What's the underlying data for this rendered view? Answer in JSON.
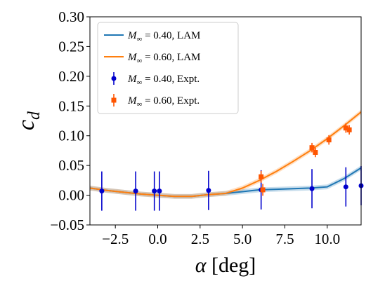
{
  "chart_data": {
    "type": "line",
    "xlabel": "α [deg]",
    "ylabel": "c_d",
    "xlim": [
      -4.0,
      12.0
    ],
    "ylim": [
      -0.05,
      0.3
    ],
    "x_ticks": [
      -2.5,
      0.0,
      2.5,
      5.0,
      7.5,
      10.0
    ],
    "x_tick_labels": [
      "−2.5",
      "0.0",
      "2.5",
      "5.0",
      "7.5",
      "10.0"
    ],
    "y_ticks": [
      -0.05,
      0.0,
      0.05,
      0.1,
      0.15,
      0.2,
      0.25,
      0.3
    ],
    "y_tick_labels": [
      "−0.05",
      "0.00",
      "0.05",
      "0.10",
      "0.15",
      "0.20",
      "0.25",
      "0.30"
    ],
    "grid": false,
    "legend_position": "top-left",
    "series": [
      {
        "name": "M∞ = 0.40, LAM",
        "legend_main": "M",
        "legend_sub": "∞",
        "legend_rest": " = 0.40, LAM",
        "kind": "line",
        "color": "#1f77b4",
        "x": [
          -4.0,
          -3.0,
          -2.0,
          -1.0,
          0.0,
          1.0,
          2.0,
          3.0,
          4.0,
          5.0,
          6.0,
          7.0,
          8.0,
          9.0,
          10.0,
          11.0,
          12.0
        ],
        "y": [
          0.012,
          0.008,
          0.005,
          0.002,
          0.0,
          -0.002,
          -0.002,
          0.001,
          0.003,
          0.006,
          0.009,
          0.01,
          0.011,
          0.012,
          0.014,
          0.028,
          0.046
        ]
      },
      {
        "name": "M∞ = 0.60, LAM",
        "legend_main": "M",
        "legend_sub": "∞",
        "legend_rest": " = 0.60, LAM",
        "kind": "line",
        "color": "#ff7f0e",
        "x": [
          -4.0,
          -3.0,
          -2.0,
          -1.0,
          0.0,
          1.0,
          2.0,
          3.0,
          4.0,
          5.0,
          6.0,
          7.0,
          8.0,
          9.0,
          10.0,
          11.0,
          12.0
        ],
        "y": [
          0.012,
          0.008,
          0.005,
          0.002,
          0.0,
          -0.002,
          -0.002,
          0.001,
          0.003,
          0.012,
          0.025,
          0.04,
          0.057,
          0.075,
          0.095,
          0.117,
          0.14
        ]
      },
      {
        "name": "M∞ = 0.40, Expt.",
        "legend_main": "M",
        "legend_sub": "∞",
        "legend_rest": " = 0.40, Expt.",
        "kind": "errorbar",
        "marker": "circle",
        "color": "#0000cc",
        "x": [
          -3.3,
          -1.3,
          -0.2,
          0.1,
          3.0,
          6.1,
          9.1,
          11.1,
          12.0
        ],
        "y": [
          0.007,
          0.007,
          0.007,
          0.007,
          0.008,
          0.009,
          0.011,
          0.014,
          0.016
        ],
        "yerr": [
          0.033,
          0.033,
          0.033,
          0.033,
          0.033,
          0.033,
          0.033,
          0.033,
          0.033
        ]
      },
      {
        "name": "M∞ = 0.60, Expt.",
        "legend_main": "M",
        "legend_sub": "∞",
        "legend_rest": " = 0.60, Expt.",
        "kind": "errorbar",
        "marker": "square",
        "color": "#ff5500",
        "x": [
          6.1,
          6.2,
          9.1,
          9.3,
          10.1,
          11.1,
          11.3
        ],
        "y": [
          0.031,
          0.009,
          0.08,
          0.072,
          0.093,
          0.113,
          0.11
        ],
        "yerr": [
          0.01,
          0.01,
          0.008,
          0.008,
          0.008,
          0.008,
          0.008
        ]
      }
    ]
  }
}
